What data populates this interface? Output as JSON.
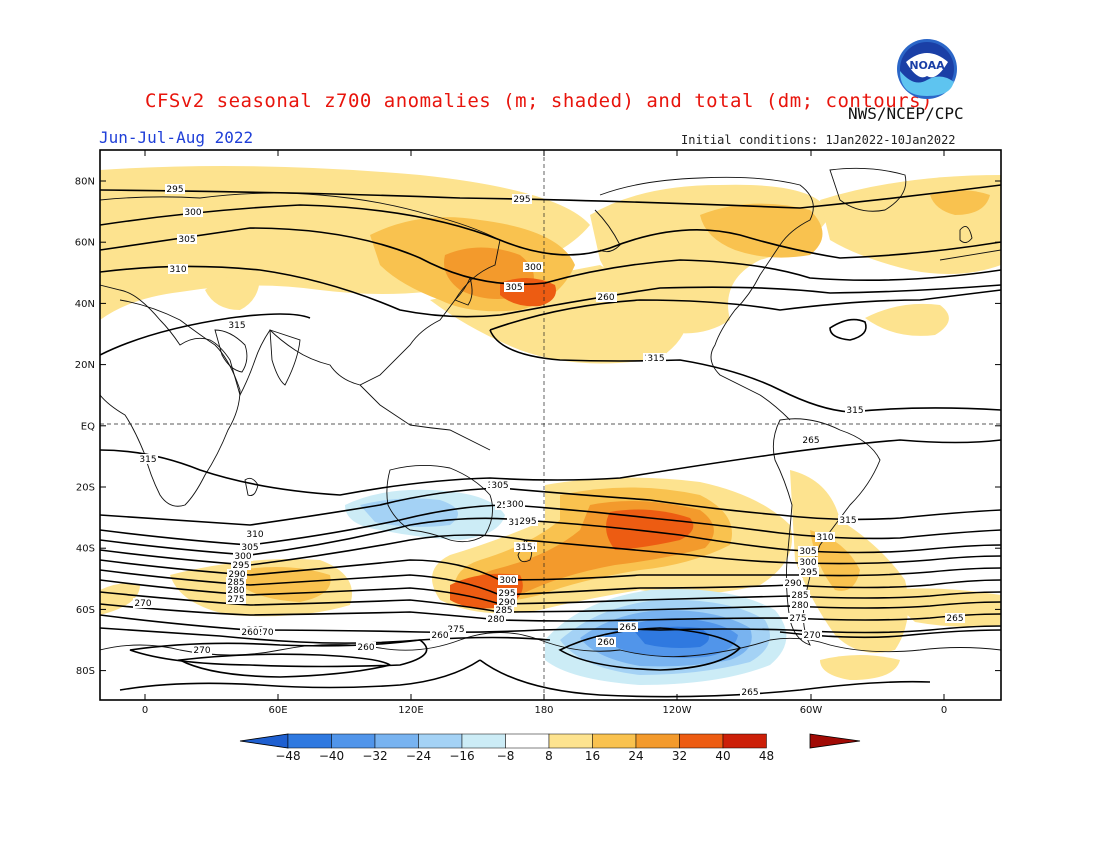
{
  "header": {
    "title": "CFSv2 seasonal z700 anomalies (m; shaded) and total (dm; contours)",
    "agency": "NWS/NCEP/CPC",
    "period": "Jun-Jul-Aug 2022",
    "initial_conditions": "Initial conditions: 1Jan2022-10Jan2022",
    "logo_text": "NOAA"
  },
  "map": {
    "projection": "cylindrical equidistant",
    "center_longitude": "180",
    "lat_ticks": [
      "80N",
      "60N",
      "40N",
      "20N",
      "EQ",
      "20S",
      "40S",
      "60S",
      "80S"
    ],
    "lon_ticks": [
      "0",
      "60E",
      "120E",
      "180",
      "120W",
      "60W",
      "0"
    ],
    "colors": {
      "neg48": "#1e5fd0",
      "neg40": "#2f79e0",
      "neg32": "#5195ea",
      "neg24": "#78b3f0",
      "neg16": "#a4d2f5",
      "neg8": "#ccecf6",
      "pos8": "#fde38f",
      "pos16": "#f9c24f",
      "pos24": "#f39a2c",
      "pos32": "#ed5c12",
      "pos40": "#cc1f08",
      "pos48": "#a10a05"
    },
    "contour_labels": [
      "295",
      "300",
      "305",
      "310",
      "315",
      "295",
      "300",
      "305",
      "315",
      "315",
      "310",
      "315",
      "310",
      "305",
      "300",
      "295",
      "290",
      "285",
      "280",
      "275",
      "270",
      "265",
      "260",
      "255",
      "310",
      "305",
      "300",
      "295",
      "290",
      "285",
      "280",
      "275",
      "270",
      "265",
      "260",
      "315",
      "315",
      "310",
      "305",
      "300",
      "295",
      "290",
      "285",
      "280",
      "275",
      "270",
      "265",
      "260",
      "260",
      "270",
      "265",
      "260",
      "265",
      "315",
      "315",
      "295",
      "300",
      "305",
      "310"
    ]
  },
  "colorbar": {
    "labels": [
      "-48",
      "-40",
      "-32",
      "-24",
      "-16",
      "-8",
      "8",
      "16",
      "24",
      "32",
      "40",
      "48"
    ],
    "colors": [
      "#1e5fd0",
      "#2f79e0",
      "#5195ea",
      "#78b3f0",
      "#a4d2f5",
      "#ccecf6",
      "#ffffff",
      "#fde38f",
      "#f9c24f",
      "#f39a2c",
      "#ed5c12",
      "#cc1f08",
      "#a10a05"
    ]
  }
}
